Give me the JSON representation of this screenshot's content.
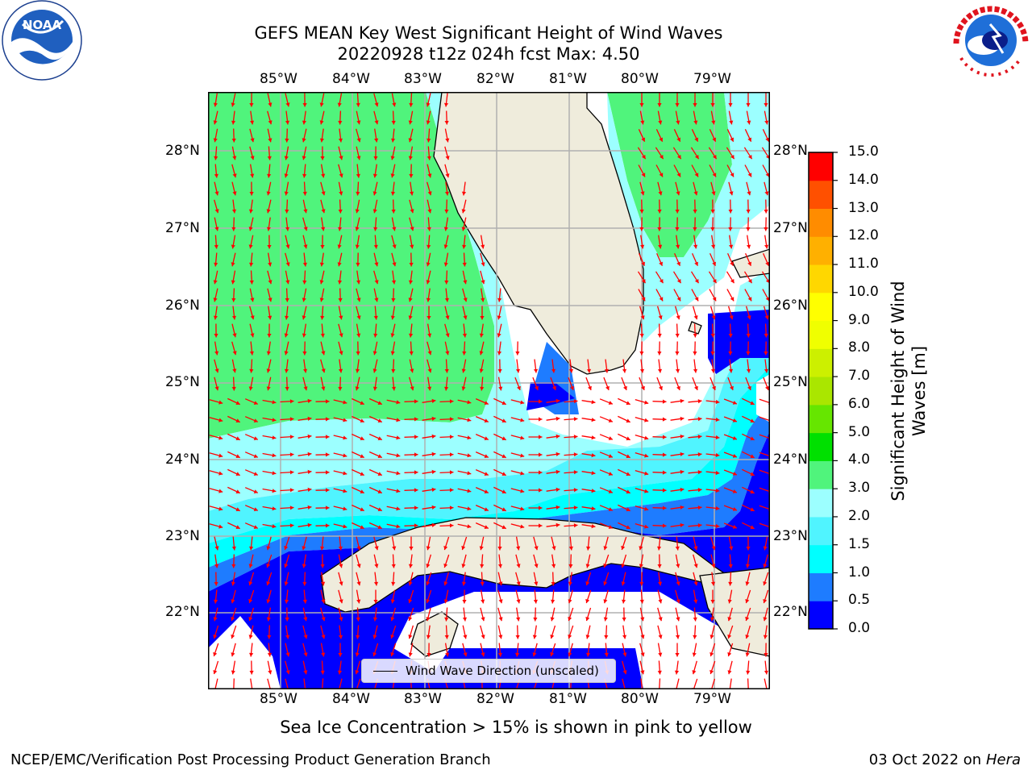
{
  "title": {
    "line1": "GEFS MEAN Key West Significant Height of Wind Waves",
    "line2": "20220928 t12z 024h fcst   Max: 4.50"
  },
  "map": {
    "lon_ticks": [
      "85°W",
      "84°W",
      "83°W",
      "82°W",
      "81°W",
      "80°W",
      "79°W"
    ],
    "lat_ticks": [
      "28°N",
      "27°N",
      "26°N",
      "25°N",
      "24°N",
      "23°N",
      "22°N"
    ],
    "legend_label": "Wind Wave Direction (unscaled)",
    "colors": {
      "land": "#efecdc",
      "ocean_background": "#ffffff",
      "gridline": "#b0b0b0",
      "arrow": "#ff0000",
      "coast": "#000000"
    }
  },
  "colorbar": {
    "title": "Significant Height of Wind Waves [m]",
    "levels": [
      "0.0",
      "0.5",
      "1.0",
      "1.5",
      "2.0",
      "3.0",
      "4.0",
      "5.0",
      "6.0",
      "7.0",
      "8.0",
      "9.0",
      "10.0",
      "11.0",
      "12.0",
      "13.0",
      "14.0",
      "15.0"
    ],
    "colors": [
      "#0000ff",
      "#1e7cff",
      "#00ffff",
      "#50f4ff",
      "#9cffff",
      "#50f47c",
      "#00e000",
      "#66e600",
      "#aae600",
      "#ccf000",
      "#f0ff00",
      "#ffff00",
      "#ffd700",
      "#ffb000",
      "#ff8c00",
      "#ff5000",
      "#ff0000"
    ]
  },
  "caption": "Sea Ice Concentration > 15% is shown in pink to yellow",
  "footer": {
    "left": "NCEP/EMC/Verification Post Processing Product Generation Branch",
    "date": "03 Oct 2022 on ",
    "host": "Hera"
  },
  "logos": {
    "noaa": "NOAA",
    "nws": "NATIONAL WEATHER SERVICE"
  }
}
